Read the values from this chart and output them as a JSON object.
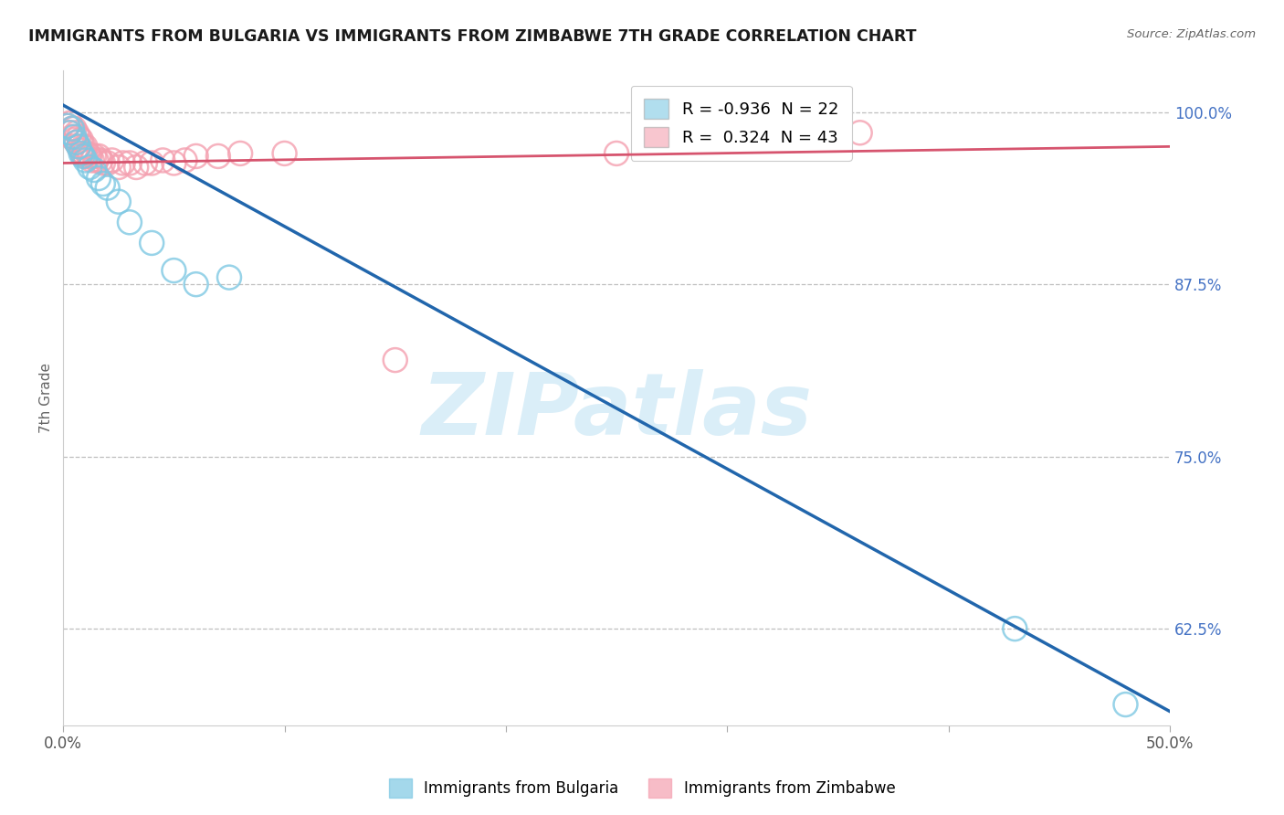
{
  "title": "IMMIGRANTS FROM BULGARIA VS IMMIGRANTS FROM ZIMBABWE 7TH GRADE CORRELATION CHART",
  "source_text": "Source: ZipAtlas.com",
  "ylabel": "7th Grade",
  "ytick_labels": [
    "100.0%",
    "87.5%",
    "75.0%",
    "62.5%"
  ],
  "ytick_values": [
    1.0,
    0.875,
    0.75,
    0.625
  ],
  "xmin": 0.0,
  "xmax": 0.5,
  "ymin": 0.555,
  "ymax": 1.03,
  "blue_R": -0.936,
  "blue_N": 22,
  "pink_R": 0.324,
  "pink_N": 43,
  "blue_color": "#7ec8e3",
  "pink_color": "#f4a0b0",
  "blue_line_color": "#2166ac",
  "pink_line_color": "#d6546e",
  "watermark_color": "#daeef8",
  "blue_line_x0": 0.0,
  "blue_line_y0": 1.005,
  "blue_line_x1": 0.5,
  "blue_line_y1": 0.565,
  "pink_line_x0": 0.0,
  "pink_line_y0": 0.963,
  "pink_line_x1": 0.5,
  "pink_line_y1": 0.975,
  "blue_scatter_x": [
    0.002,
    0.003,
    0.004,
    0.005,
    0.006,
    0.007,
    0.008,
    0.009,
    0.01,
    0.012,
    0.014,
    0.016,
    0.018,
    0.02,
    0.025,
    0.03,
    0.04,
    0.05,
    0.06,
    0.075,
    0.43,
    0.48
  ],
  "blue_scatter_y": [
    0.99,
    0.985,
    0.988,
    0.982,
    0.978,
    0.975,
    0.97,
    0.968,
    0.965,
    0.96,
    0.958,
    0.952,
    0.948,
    0.945,
    0.935,
    0.92,
    0.905,
    0.885,
    0.875,
    0.88,
    0.625,
    0.57
  ],
  "pink_scatter_x": [
    0.002,
    0.003,
    0.003,
    0.004,
    0.004,
    0.005,
    0.005,
    0.006,
    0.006,
    0.007,
    0.007,
    0.008,
    0.008,
    0.009,
    0.009,
    0.01,
    0.01,
    0.011,
    0.012,
    0.013,
    0.014,
    0.015,
    0.016,
    0.017,
    0.018,
    0.02,
    0.022,
    0.025,
    0.027,
    0.03,
    0.033,
    0.037,
    0.04,
    0.045,
    0.05,
    0.055,
    0.06,
    0.07,
    0.08,
    0.1,
    0.15,
    0.25,
    0.36
  ],
  "pink_scatter_y": [
    0.99,
    0.992,
    0.985,
    0.988,
    0.982,
    0.988,
    0.98,
    0.985,
    0.978,
    0.982,
    0.975,
    0.98,
    0.972,
    0.975,
    0.97,
    0.975,
    0.968,
    0.97,
    0.968,
    0.965,
    0.968,
    0.965,
    0.968,
    0.965,
    0.963,
    0.963,
    0.965,
    0.96,
    0.963,
    0.963,
    0.96,
    0.963,
    0.963,
    0.965,
    0.963,
    0.965,
    0.968,
    0.968,
    0.97,
    0.97,
    0.82,
    0.97,
    0.985
  ]
}
